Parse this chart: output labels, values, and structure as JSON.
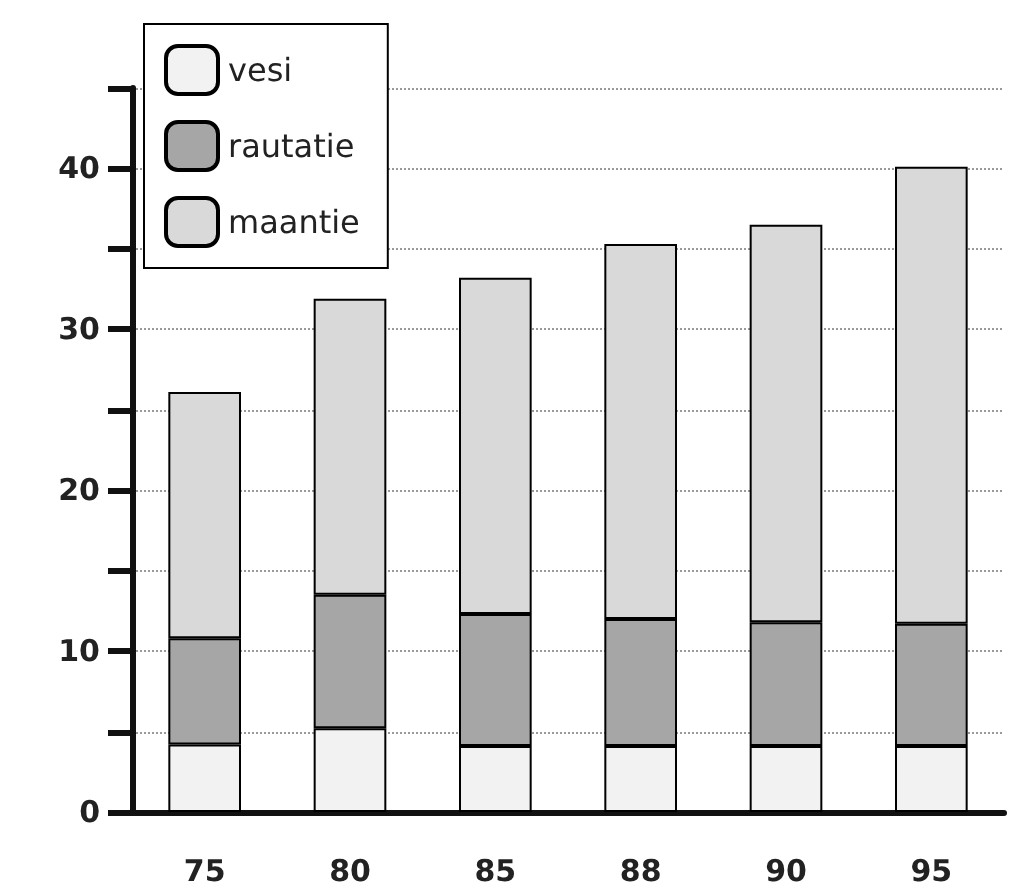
{
  "chart_data": {
    "type": "bar",
    "stacked": true,
    "categories": [
      "75",
      "80",
      "85",
      "88",
      "90",
      "95"
    ],
    "series": [
      {
        "name": "vesi",
        "color": "#f2f2f2",
        "values": [
          4.2,
          5.2,
          4.1,
          4.1,
          4.1,
          4.1
        ]
      },
      {
        "name": "rautatie",
        "color": "#a6a6a6",
        "values": [
          6.6,
          8.3,
          8.2,
          7.9,
          7.7,
          7.6
        ]
      },
      {
        "name": "maantie",
        "color": "#d9d9d9",
        "values": [
          15.3,
          18.4,
          20.9,
          23.3,
          24.7,
          28.4
        ]
      }
    ],
    "ylim": [
      0,
      45
    ],
    "yticks": [
      0,
      {
        "value": 5,
        "label": null
      },
      10,
      {
        "value": 15,
        "label": null
      },
      20,
      {
        "value": 25,
        "label": null
      },
      30,
      {
        "value": 35,
        "label": null
      },
      40,
      {
        "value": 45,
        "label": null
      }
    ],
    "grid": true,
    "legend": "top left"
  }
}
